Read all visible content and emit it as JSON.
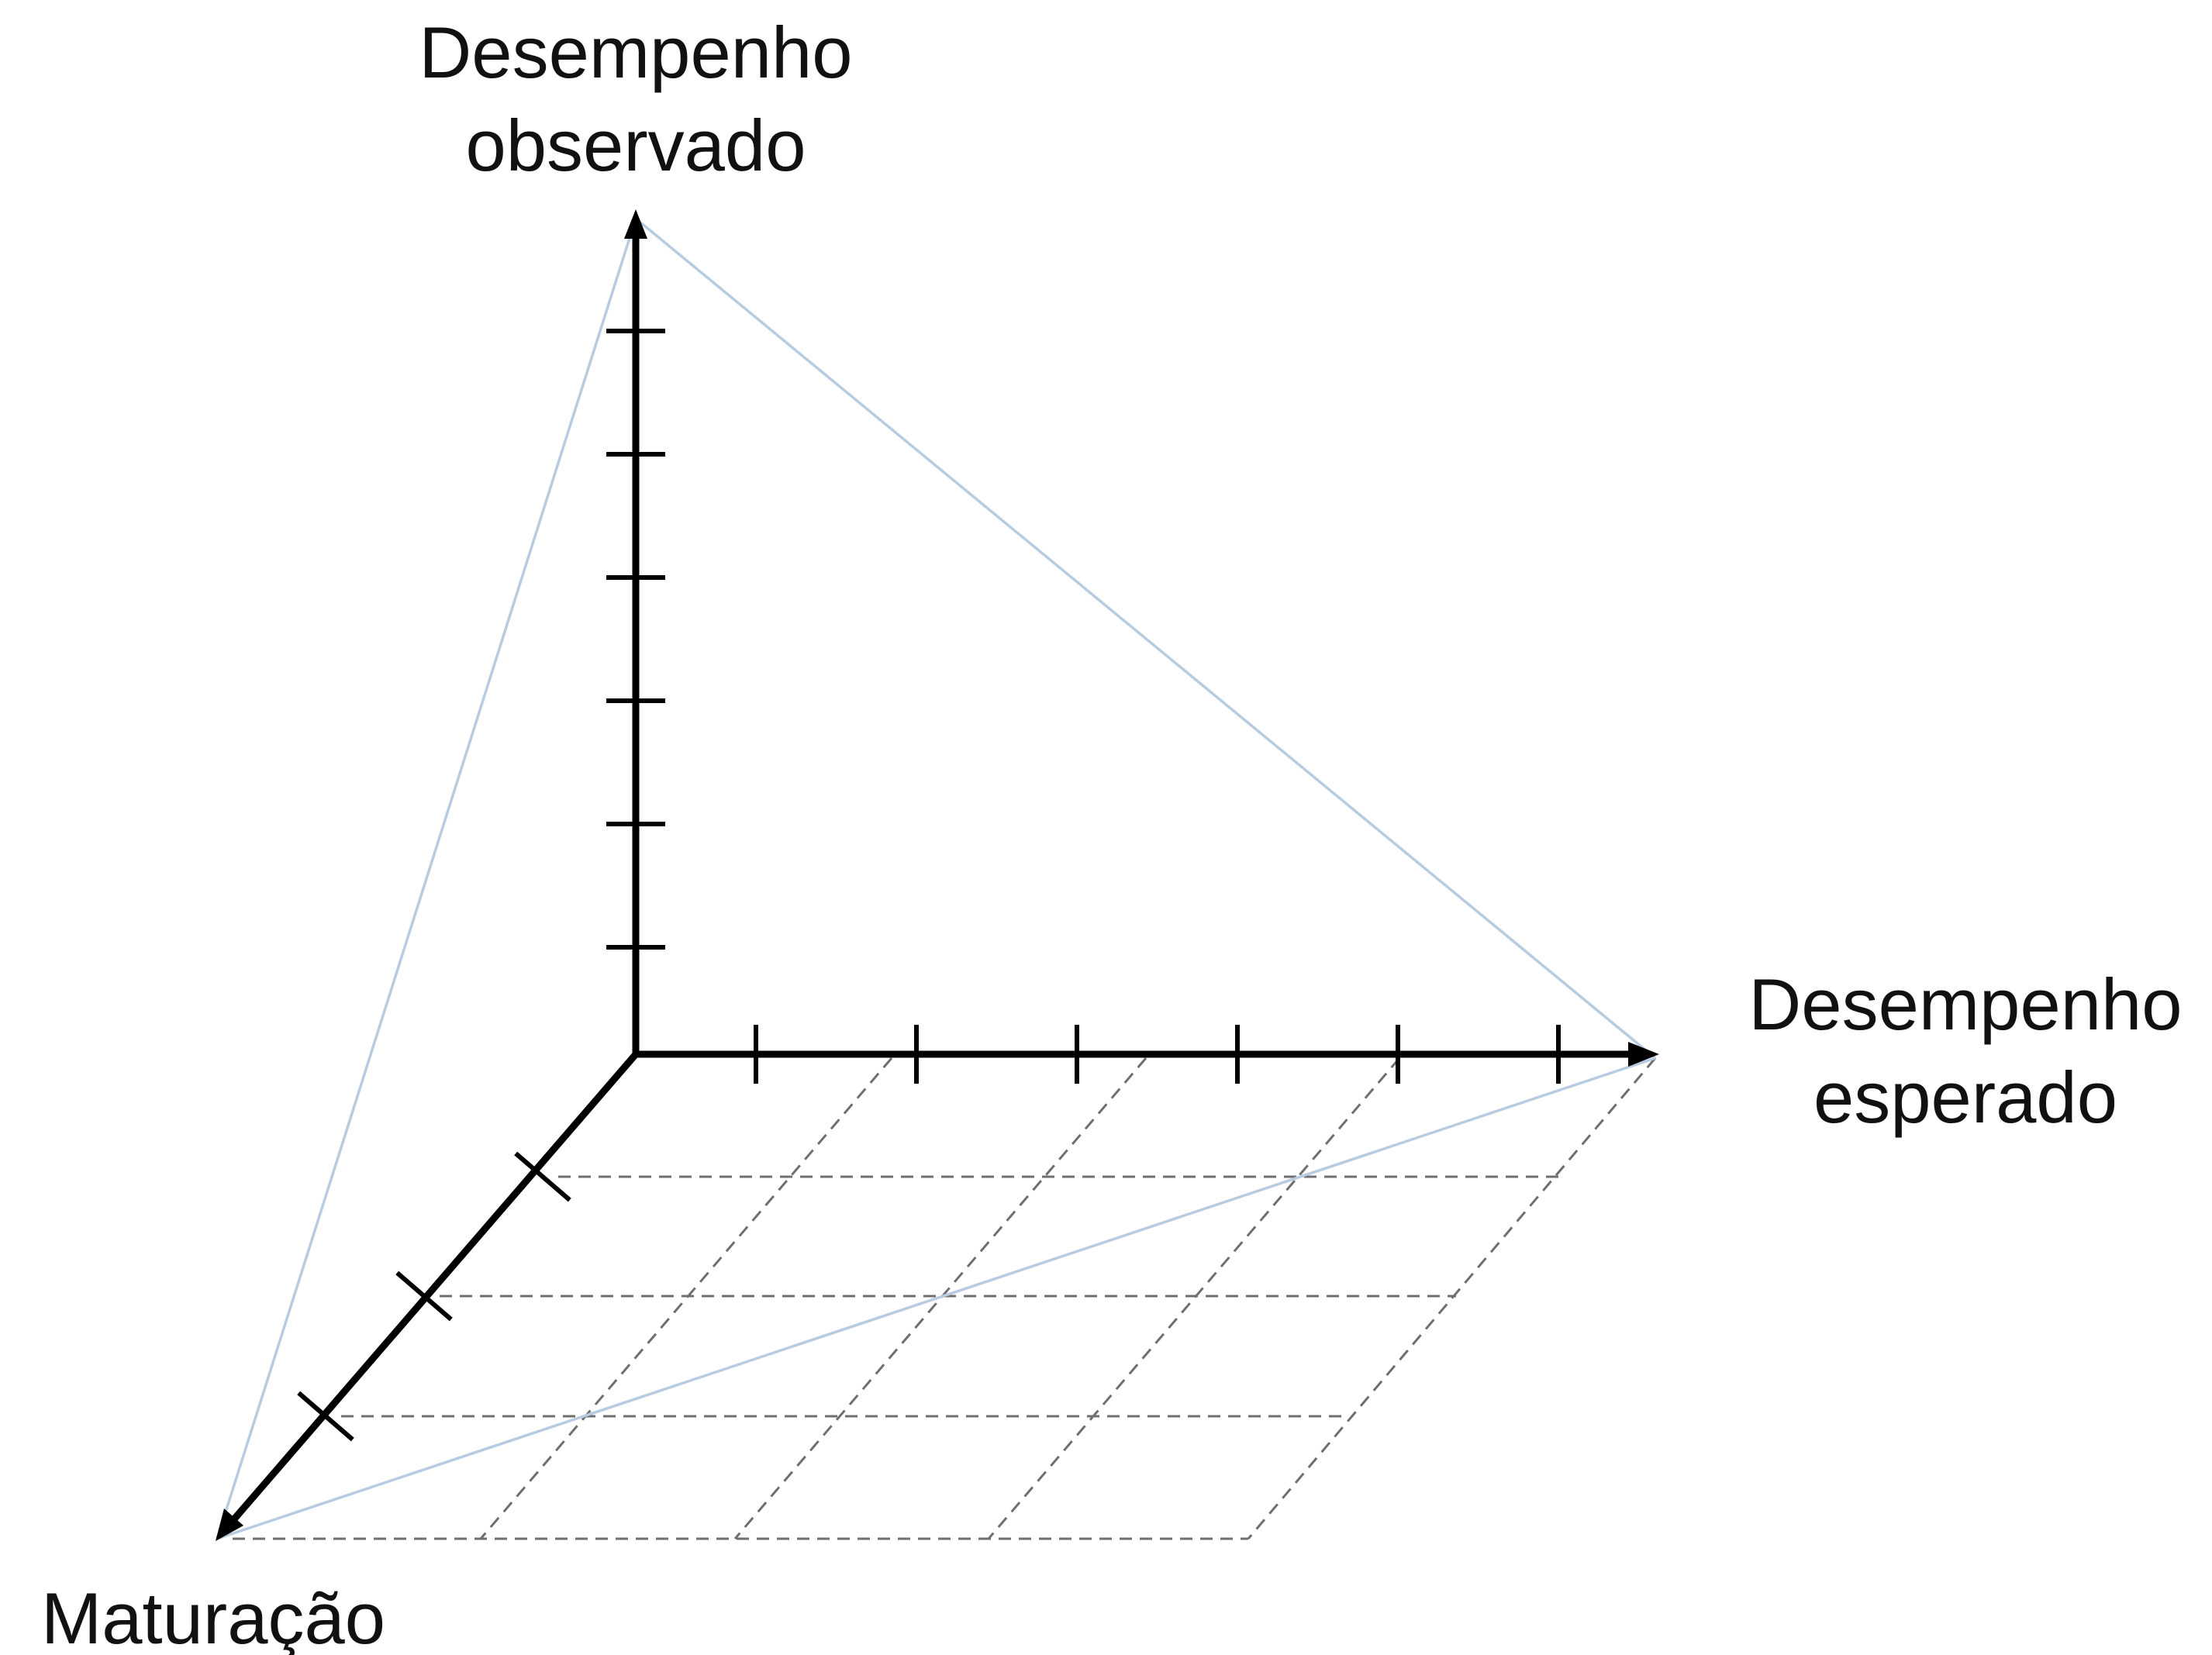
{
  "diagram": {
    "axes": {
      "vertical": {
        "label_lines": [
          "Desempenho",
          "observado"
        ],
        "tick_count": 6
      },
      "horizontal": {
        "label_lines": [
          "Desempenho",
          "esperado"
        ],
        "tick_count": 6
      },
      "depth": {
        "label_lines": [
          "Maturação"
        ],
        "tick_count": 3
      }
    },
    "grid": {
      "style": "dashed",
      "rows": 4,
      "columns": 4
    },
    "colors": {
      "axis": "#000000",
      "guide": "#b7cce0",
      "grid": "#6f6f6f",
      "background": "#ffffff"
    }
  }
}
